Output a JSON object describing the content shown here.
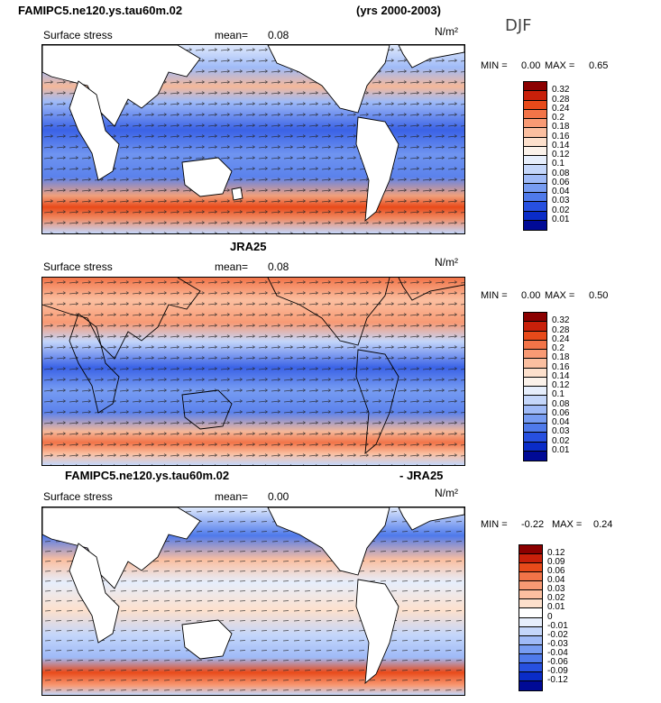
{
  "figure": {
    "case_name": "FAMIPC5.ne120.ys.tau60m.02",
    "years": "(yrs 2000-2003)",
    "season": "DJF"
  },
  "panels": [
    {
      "title_left": "",
      "title_right": "",
      "variable": "Surface stress",
      "mean_label": "mean=",
      "mean_value": "0.08",
      "units": "N/m²",
      "min_label": "MIN =",
      "min_value": "0.00",
      "max_label": "MAX =",
      "max_value": "0.65"
    },
    {
      "title_left": "JRA25",
      "title_right": "",
      "variable": "Surface stress",
      "mean_label": "mean=",
      "mean_value": "0.08",
      "units": "N/m²",
      "min_label": "MIN =",
      "min_value": "0.00",
      "max_label": "MAX =",
      "max_value": "0.50"
    },
    {
      "title_left": "FAMIPC5.ne120.ys.tau60m.02",
      "title_right": "- JRA25",
      "variable": "Surface stress",
      "mean_label": "mean=",
      "mean_value": "0.00",
      "units": "N/m²",
      "min_label": "MIN =",
      "min_value": "-0.22",
      "max_label": "MAX =",
      "max_value": "0.24"
    }
  ],
  "chart_data": [
    {
      "type": "heatmap",
      "title": "FAMIPC5.ne120.ys.tau60m.02",
      "subtitle": "Surface stress",
      "units": "N/m²",
      "mean": 0.08,
      "min": 0.0,
      "max": 0.65,
      "colorbar_levels": [
        "0.32",
        "0.28",
        "0.24",
        "0.2",
        "0.18",
        "0.16",
        "0.14",
        "0.12",
        "0.1",
        "0.08",
        "0.06",
        "0.04",
        "0.03",
        "0.02",
        "0.01"
      ],
      "colorbar_colors": [
        "#8b0000",
        "#c8200a",
        "#e84a1a",
        "#f27448",
        "#f89a74",
        "#fbbfa0",
        "#fde0cc",
        "#fbf2ea",
        "#e6eefc",
        "#c4d6fa",
        "#9fbaf7",
        "#779cf2",
        "#4f7aeb",
        "#2750e0",
        "#0a2cc8",
        "#000a96"
      ]
    },
    {
      "type": "heatmap",
      "title": "JRA25",
      "subtitle": "Surface stress",
      "units": "N/m²",
      "mean": 0.08,
      "min": 0.0,
      "max": 0.5,
      "colorbar_levels": [
        "0.32",
        "0.28",
        "0.24",
        "0.2",
        "0.18",
        "0.16",
        "0.14",
        "0.12",
        "0.1",
        "0.08",
        "0.06",
        "0.04",
        "0.03",
        "0.02",
        "0.01"
      ],
      "colorbar_colors": [
        "#8b0000",
        "#c8200a",
        "#e84a1a",
        "#f27448",
        "#f89a74",
        "#fbbfa0",
        "#fde0cc",
        "#fbf2ea",
        "#e6eefc",
        "#c4d6fa",
        "#9fbaf7",
        "#779cf2",
        "#4f7aeb",
        "#2750e0",
        "#0a2cc8",
        "#000a96"
      ]
    },
    {
      "type": "heatmap",
      "title": "FAMIPC5.ne120.ys.tau60m.02 - JRA25",
      "subtitle": "Surface stress",
      "units": "N/m²",
      "mean": 0.0,
      "min": -0.22,
      "max": 0.24,
      "colorbar_levels": [
        "0.12",
        "0.09",
        "0.06",
        "0.04",
        "0.03",
        "0.02",
        "0.01",
        "0",
        "-0.01",
        "-0.02",
        "-0.03",
        "-0.04",
        "-0.06",
        "-0.09",
        "-0.12"
      ],
      "colorbar_colors": [
        "#8b0000",
        "#c8200a",
        "#e84a1a",
        "#f27448",
        "#f89a74",
        "#fbbfa0",
        "#fde0cc",
        "#ffffff",
        "#e6eefc",
        "#c4d6fa",
        "#9fbaf7",
        "#779cf2",
        "#4f7aeb",
        "#2750e0",
        "#0a2cc8",
        "#000a96"
      ]
    }
  ]
}
